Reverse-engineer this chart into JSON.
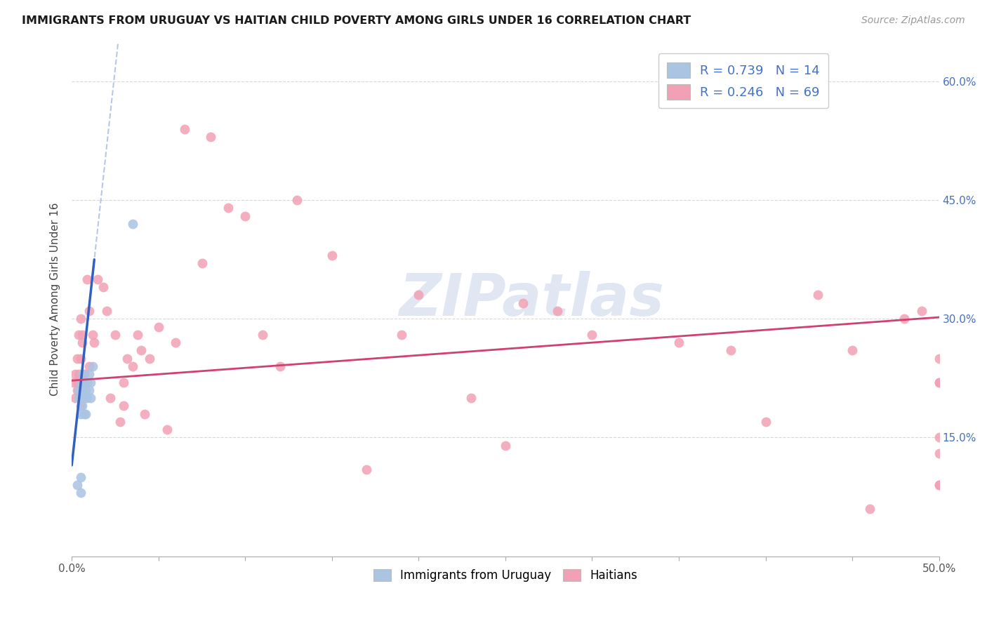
{
  "title": "IMMIGRANTS FROM URUGUAY VS HAITIAN CHILD POVERTY AMONG GIRLS UNDER 16 CORRELATION CHART",
  "source": "Source: ZipAtlas.com",
  "ylabel": "Child Poverty Among Girls Under 16",
  "xlim": [
    0.0,
    0.5
  ],
  "ylim": [
    0.0,
    0.65
  ],
  "x_ticks": [
    0.0,
    0.05,
    0.1,
    0.15,
    0.2,
    0.25,
    0.3,
    0.35,
    0.4,
    0.45,
    0.5
  ],
  "y_ticks": [
    0.0,
    0.15,
    0.3,
    0.45,
    0.6
  ],
  "color_uruguay": "#aac4e2",
  "color_haiti": "#f2a0b5",
  "color_line_uruguay": "#3060c0",
  "color_line_haiti": "#d04070",
  "color_legend_text": "#4472c4",
  "color_right_axis": "#4472c4",
  "background_color": "#ffffff",
  "grid_color": "#d8d8d8",
  "uruguay_x": [
    0.003,
    0.004,
    0.004,
    0.005,
    0.005,
    0.005,
    0.005,
    0.005,
    0.006,
    0.006,
    0.006,
    0.007,
    0.007,
    0.007,
    0.008,
    0.008,
    0.009,
    0.009,
    0.01,
    0.01,
    0.011,
    0.011,
    0.012,
    0.035
  ],
  "uruguay_y": [
    0.09,
    0.2,
    0.21,
    0.08,
    0.1,
    0.18,
    0.2,
    0.22,
    0.19,
    0.21,
    0.23,
    0.18,
    0.2,
    0.22,
    0.18,
    0.21,
    0.2,
    0.22,
    0.21,
    0.23,
    0.2,
    0.22,
    0.24,
    0.42
  ],
  "haiti_x": [
    0.001,
    0.002,
    0.002,
    0.003,
    0.003,
    0.003,
    0.004,
    0.004,
    0.005,
    0.005,
    0.005,
    0.006,
    0.006,
    0.007,
    0.007,
    0.009,
    0.01,
    0.01,
    0.012,
    0.013,
    0.015,
    0.018,
    0.02,
    0.022,
    0.025,
    0.028,
    0.03,
    0.03,
    0.032,
    0.035,
    0.038,
    0.04,
    0.042,
    0.045,
    0.05,
    0.055,
    0.06,
    0.065,
    0.075,
    0.08,
    0.09,
    0.1,
    0.11,
    0.12,
    0.13,
    0.15,
    0.17,
    0.19,
    0.2,
    0.23,
    0.25,
    0.26,
    0.28,
    0.3,
    0.35,
    0.38,
    0.4,
    0.43,
    0.45,
    0.46,
    0.48,
    0.49,
    0.5,
    0.5,
    0.5,
    0.5,
    0.5,
    0.5,
    0.5
  ],
  "haiti_y": [
    0.22,
    0.2,
    0.23,
    0.21,
    0.22,
    0.25,
    0.28,
    0.23,
    0.19,
    0.25,
    0.3,
    0.27,
    0.28,
    0.22,
    0.23,
    0.35,
    0.24,
    0.31,
    0.28,
    0.27,
    0.35,
    0.34,
    0.31,
    0.2,
    0.28,
    0.17,
    0.22,
    0.19,
    0.25,
    0.24,
    0.28,
    0.26,
    0.18,
    0.25,
    0.29,
    0.16,
    0.27,
    0.54,
    0.37,
    0.53,
    0.44,
    0.43,
    0.28,
    0.24,
    0.45,
    0.38,
    0.11,
    0.28,
    0.33,
    0.2,
    0.14,
    0.32,
    0.31,
    0.28,
    0.27,
    0.26,
    0.17,
    0.33,
    0.26,
    0.06,
    0.3,
    0.31,
    0.22,
    0.13,
    0.15,
    0.09,
    0.22,
    0.25,
    0.09
  ],
  "watermark_text": "ZIPatlas",
  "watermark_color": "#c8d5e8",
  "watermark_alpha": 0.55
}
